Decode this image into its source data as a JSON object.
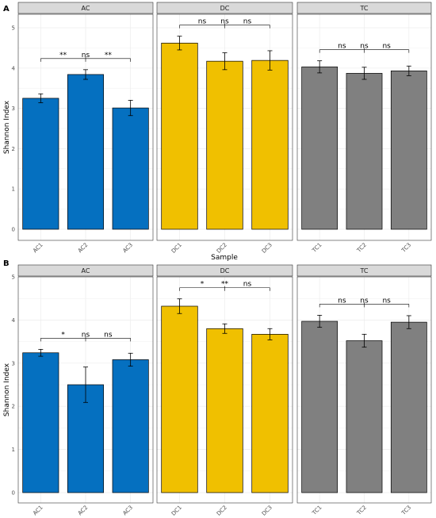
{
  "colors": {
    "AC": "#0570c0",
    "DC": "#f0c000",
    "TC": "#808080",
    "strip_bg": "#d9d9d9",
    "grid": "#ececec"
  },
  "chart_data": [
    {
      "type": "bar",
      "tag": "A",
      "ylabel": "Shannon Index",
      "xlabel": "Sample",
      "ylim": [
        0,
        5
      ],
      "yticks": [
        "0",
        "1",
        "2",
        "3",
        "4",
        "5"
      ],
      "grid": true,
      "facets": [
        {
          "name": "AC",
          "categories": [
            "AC1",
            "AC2",
            "AC3"
          ],
          "values": [
            3.25,
            3.84,
            3.01
          ],
          "errors": [
            0.11,
            0.12,
            0.19
          ],
          "sig": [
            "**",
            "ns",
            "**"
          ]
        },
        {
          "name": "DC",
          "categories": [
            "DC1",
            "DC2",
            "DC3"
          ],
          "values": [
            4.62,
            4.17,
            4.19
          ],
          "errors": [
            0.17,
            0.21,
            0.24
          ],
          "sig": [
            "ns",
            "ns",
            "ns"
          ]
        },
        {
          "name": "TC",
          "categories": [
            "TC1",
            "TC2",
            "TC3"
          ],
          "values": [
            4.03,
            3.87,
            3.93
          ],
          "errors": [
            0.15,
            0.15,
            0.12
          ],
          "sig": [
            "ns",
            "ns",
            "ns"
          ]
        }
      ]
    },
    {
      "type": "bar",
      "tag": "B",
      "ylabel": "Shannon Index",
      "xlabel": "",
      "ylim": [
        0,
        5
      ],
      "yticks": [
        "0",
        "1",
        "2",
        "3",
        "4",
        "5"
      ],
      "grid": true,
      "facets": [
        {
          "name": "AC",
          "categories": [
            "AC1",
            "AC2",
            "AC3"
          ],
          "values": [
            3.24,
            2.5,
            3.08
          ],
          "errors": [
            0.08,
            0.41,
            0.15
          ],
          "sig": [
            "*",
            "ns",
            "ns"
          ]
        },
        {
          "name": "DC",
          "categories": [
            "DC1",
            "DC2",
            "DC3"
          ],
          "values": [
            4.32,
            3.8,
            3.67
          ],
          "errors": [
            0.17,
            0.11,
            0.13
          ],
          "sig": [
            "*",
            "**",
            "ns"
          ]
        },
        {
          "name": "TC",
          "categories": [
            "TC1",
            "TC2",
            "TC3"
          ],
          "values": [
            3.97,
            3.52,
            3.95
          ],
          "errors": [
            0.14,
            0.15,
            0.15
          ],
          "sig": [
            "ns",
            "ns",
            "ns"
          ]
        }
      ]
    }
  ]
}
